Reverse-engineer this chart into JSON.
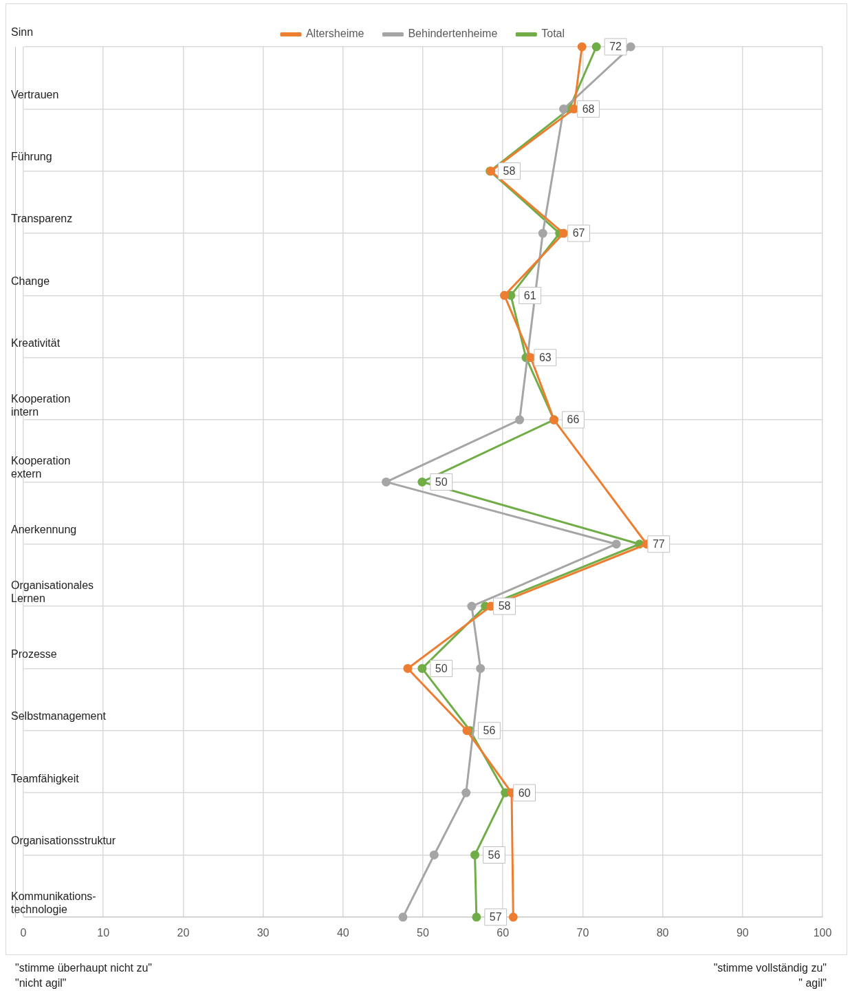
{
  "chart_data": {
    "type": "line",
    "orientation": "horizontal",
    "categories": [
      "Sinn",
      "Vertrauen",
      "Führung",
      "Transparenz",
      "Change",
      "Kreativität",
      "Kooperation\nintern",
      "Kooperation\nextern",
      "Anerkennung",
      "Organisationales\nLernen",
      "Prozesse",
      "Selbstmanagement",
      "Teamfähigkeit",
      "Organisationsstruktur",
      "Kommunikations-\ntechnologie"
    ],
    "series": [
      {
        "name": "Altersheime",
        "color": "#ed7d31",
        "values": [
          69.9,
          68.9,
          58.5,
          67.6,
          60.2,
          63.5,
          66.4,
          null,
          78,
          58.5,
          48.1,
          55.5,
          61.1,
          null,
          61.3
        ]
      },
      {
        "name": "Behindertenheime",
        "color": "#a5a5a5",
        "values": [
          76,
          67.6,
          null,
          65,
          null,
          null,
          62.1,
          45.4,
          74.2,
          56.1,
          57.2,
          null,
          55.4,
          51.4,
          47.5
        ]
      },
      {
        "name": "Total",
        "color": "#70ad47",
        "values": [
          71.7,
          68.3,
          58.4,
          67.1,
          61,
          62.9,
          66.4,
          49.9,
          77.1,
          57.8,
          49.9,
          55.9,
          60.3,
          56.5,
          56.7
        ],
        "value_labels": [
          "72",
          "68",
          "58",
          "67",
          "61",
          "63",
          "66",
          "50",
          "77",
          "58",
          "50",
          "56",
          "60",
          "56",
          "57"
        ]
      }
    ],
    "xlim": [
      0,
      100
    ],
    "xticks": [
      0,
      10,
      20,
      30,
      40,
      50,
      60,
      70,
      80,
      90,
      100
    ],
    "grid": true,
    "legend": "top",
    "marker": "circle",
    "line_style": "solid",
    "annotations": [
      "\"stimme überhaupt nicht zu\"\n\"nicht agil\"",
      "\"stimme vollständig zu\"\n\" agil\""
    ]
  }
}
